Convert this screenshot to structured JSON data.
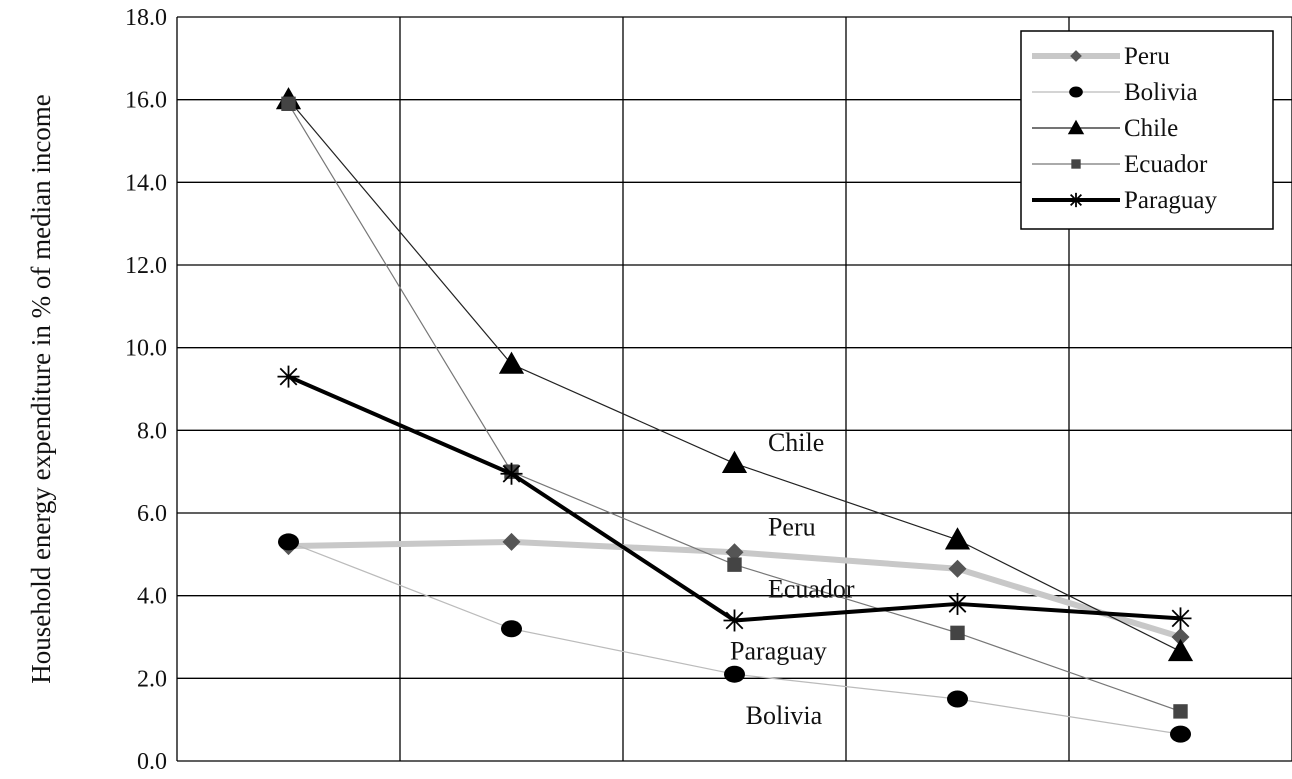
{
  "chart_data": {
    "type": "line",
    "title": "",
    "xlabel": "",
    "ylabel": "Household energy expenditure in % of median income",
    "ylim": [
      0,
      18
    ],
    "y_ticks": [
      "0.0",
      "2.0",
      "4.0",
      "6.0",
      "8.0",
      "10.0",
      "12.0",
      "14.0",
      "16.0",
      "18.0"
    ],
    "x": [
      1,
      2,
      3,
      4,
      5
    ],
    "grid": true,
    "legend_position": "top-right",
    "series": [
      {
        "name": "Peru",
        "values": [
          5.2,
          5.3,
          5.05,
          4.65,
          3.0
        ],
        "marker": "diamond",
        "color": "#c8c8c8",
        "marker_color": "#555555",
        "line_width": 6
      },
      {
        "name": "Bolivia",
        "values": [
          5.3,
          3.2,
          2.1,
          1.5,
          0.65
        ],
        "marker": "circle",
        "color": "#bbbbbb",
        "marker_color": "#000000",
        "line_width": 1.2
      },
      {
        "name": "Chile",
        "values": [
          16.0,
          9.6,
          7.2,
          5.35,
          2.65
        ],
        "marker": "triangle",
        "color": "#222222",
        "marker_color": "#000000",
        "line_width": 1.2
      },
      {
        "name": "Ecuador",
        "values": [
          15.9,
          7.0,
          4.75,
          3.1,
          1.2
        ],
        "marker": "square",
        "color": "#777777",
        "marker_color": "#444444",
        "line_width": 1.2
      },
      {
        "name": "Paraguay",
        "values": [
          9.3,
          6.95,
          3.4,
          3.8,
          3.45
        ],
        "marker": "star",
        "color": "#000000",
        "marker_color": "#000000",
        "line_width": 4
      }
    ],
    "annotations": [
      {
        "text": "Chile",
        "x": 3.15,
        "y": 7.5
      },
      {
        "text": "Peru",
        "x": 3.15,
        "y": 5.45
      },
      {
        "text": "Ecuador",
        "x": 3.15,
        "y": 3.95
      },
      {
        "text": "Paraguay",
        "x": 2.98,
        "y": 2.45
      },
      {
        "text": "Bolivia",
        "x": 3.05,
        "y": 0.9
      }
    ]
  }
}
